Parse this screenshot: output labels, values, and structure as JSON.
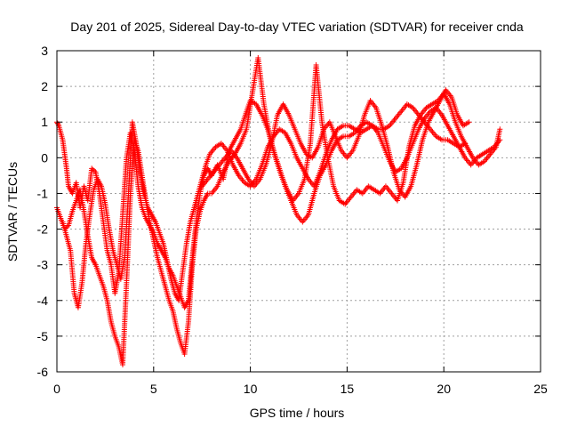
{
  "chart_data": {
    "type": "scatter",
    "title": "Day 201 of 2025, Sidereal Day-to-day VTEC variation (SDTVAR) for receiver cnda",
    "xlabel": "GPS time / hours",
    "ylabel": "SDTVAR / TECUs",
    "xlim": [
      0,
      25
    ],
    "ylim": [
      -6,
      3
    ],
    "xticks": [
      0,
      5,
      10,
      15,
      20,
      25
    ],
    "yticks": [
      -6,
      -5,
      -4,
      -3,
      -2,
      -1,
      0,
      1,
      2,
      3
    ],
    "xtick_labels": [
      "0",
      "5",
      "10",
      "15",
      "20",
      "25"
    ],
    "ytick_labels": [
      "-6",
      "-5",
      "-4",
      "-3",
      "-2",
      "-1",
      "0",
      "1",
      "2",
      "3"
    ],
    "grid": true,
    "marker": "plus",
    "color": "#ff0000",
    "series": [
      {
        "x": [
          0.0,
          0.1,
          0.2,
          0.3,
          0.4,
          0.5,
          0.6,
          0.8,
          1.0,
          1.2,
          1.4,
          1.6,
          1.8,
          2.0,
          2.2,
          2.4,
          2.6,
          2.8,
          3.0,
          3.2,
          3.4,
          3.6,
          3.8,
          4.0,
          4.2,
          4.4,
          4.6,
          4.8,
          5.0,
          5.2,
          5.4,
          5.6,
          5.8,
          6.0,
          6.2,
          6.4,
          6.6,
          6.8,
          7.0,
          7.2,
          7.4,
          7.6,
          7.8,
          8.0,
          8.3,
          8.6,
          8.9,
          9.2,
          9.5,
          9.8,
          10.0,
          10.3,
          10.6,
          10.9,
          11.2,
          11.5,
          11.8,
          12.1,
          12.4,
          12.7,
          13.0,
          13.3,
          13.6,
          13.9,
          14.2,
          14.5,
          14.8,
          15.1,
          15.4,
          15.7,
          16.0,
          16.3,
          16.6,
          16.9,
          17.2,
          17.5,
          17.8,
          18.1,
          18.4,
          18.7,
          19.0,
          19.3,
          19.6,
          19.9,
          20.2,
          20.5,
          20.8,
          21.1,
          21.4,
          21.7,
          22.0,
          22.3,
          22.6,
          22.9
        ],
        "y": [
          1.0,
          0.9,
          0.7,
          0.5,
          0.1,
          -0.3,
          -0.8,
          -1.0,
          -0.7,
          -1.4,
          -0.8,
          -1.2,
          -0.3,
          -0.4,
          -1.0,
          -1.8,
          -2.6,
          -3.0,
          -3.8,
          -3.2,
          -1.6,
          0.0,
          0.7,
          0.2,
          -0.8,
          -1.4,
          -1.7,
          -1.9,
          -2.1,
          -2.4,
          -2.6,
          -2.8,
          -3.1,
          -3.3,
          -3.6,
          -3.9,
          -4.2,
          -4.0,
          -2.8,
          -1.8,
          -1.0,
          -0.5,
          -0.3,
          -0.5,
          -0.2,
          -0.6,
          0.2,
          0.5,
          0.8,
          1.3,
          1.6,
          1.5,
          1.2,
          0.8,
          0.2,
          -0.3,
          -0.8,
          -1.2,
          -1.6,
          -1.8,
          -1.6,
          -1.0,
          -0.5,
          -0.2,
          0.2,
          0.5,
          0.6,
          0.6,
          0.7,
          0.9,
          1.0,
          0.9,
          0.8,
          0.8,
          0.9,
          1.1,
          1.3,
          1.5,
          1.4,
          1.2,
          1.0,
          0.8,
          0.6,
          0.5,
          0.5,
          0.4,
          0.3,
          0.0,
          -0.2,
          0.0,
          0.1,
          0.2,
          0.3,
          0.5
        ]
      },
      {
        "x": [
          0.0,
          0.2,
          0.4,
          0.6,
          0.8,
          1.0,
          1.2,
          1.4,
          1.6,
          1.8,
          2.0,
          2.2,
          2.4,
          2.6,
          2.8,
          3.0,
          3.2,
          3.4,
          3.6,
          3.8,
          4.0,
          4.2,
          4.4,
          4.6,
          4.8,
          5.0,
          5.2,
          5.4,
          5.6,
          5.8,
          6.0,
          6.2,
          6.4,
          6.6,
          6.8,
          7.0,
          7.2,
          7.4,
          7.6,
          7.8,
          8.0,
          8.3,
          8.6,
          8.9,
          9.2,
          9.5,
          9.8,
          10.1,
          10.4,
          10.7,
          11.0,
          11.3,
          11.6,
          11.9,
          12.2,
          12.5,
          12.8,
          13.1,
          13.4,
          13.7,
          14.0,
          14.3,
          14.6,
          14.9,
          15.2,
          15.5,
          15.8,
          16.1,
          16.4,
          16.7,
          17.0,
          17.3,
          17.6,
          17.9,
          18.2,
          18.5,
          18.8,
          19.1,
          19.4,
          19.7,
          20.0,
          20.3,
          20.6,
          20.9,
          21.2,
          21.5,
          21.8,
          22.1,
          22.4,
          22.7,
          22.9
        ],
        "y": [
          -1.4,
          -1.7,
          -2.0,
          -1.9,
          -1.5,
          -1.2,
          -0.9,
          -1.5,
          -2.2,
          -2.8,
          -3.0,
          -3.3,
          -3.6,
          -4.0,
          -4.6,
          -5.0,
          -5.3,
          -5.8,
          -3.5,
          -1.0,
          0.5,
          0.2,
          -0.5,
          -1.2,
          -1.8,
          -2.3,
          -2.8,
          -3.2,
          -3.6,
          -4.0,
          -4.3,
          -4.8,
          -5.2,
          -5.5,
          -4.6,
          -3.0,
          -2.0,
          -1.5,
          -1.2,
          -1.0,
          -1.0,
          -0.8,
          -0.4,
          -0.1,
          0.1,
          0.4,
          0.8,
          1.8,
          2.8,
          1.5,
          0.6,
          0.0,
          -0.5,
          -0.9,
          -1.2,
          -1.0,
          -0.6,
          0.4,
          2.6,
          1.0,
          0.0,
          -0.8,
          -1.2,
          -1.3,
          -1.1,
          -0.9,
          -1.0,
          -0.8,
          -0.9,
          -1.0,
          -0.8,
          -1.0,
          -1.2,
          -0.7,
          0.3,
          0.9,
          1.2,
          1.4,
          1.5,
          1.6,
          1.8,
          1.5,
          1.0,
          0.6,
          0.3,
          0.0,
          -0.2,
          -0.1,
          0.1,
          0.3,
          0.8
        ]
      },
      {
        "x": [
          0.3,
          0.5,
          0.7,
          0.9,
          1.1,
          1.3,
          1.5,
          1.7,
          1.9,
          2.1,
          2.3,
          2.5,
          2.7,
          2.9,
          3.1,
          3.3,
          3.5,
          3.7,
          3.9,
          4.1,
          4.3,
          4.5,
          4.7,
          4.9,
          5.1,
          5.3,
          5.5,
          5.7,
          5.9,
          6.1,
          6.3,
          6.5,
          6.7,
          6.9,
          7.1,
          7.3,
          7.5,
          7.7,
          7.9,
          8.2,
          8.5,
          8.8,
          9.1,
          9.4,
          9.7,
          10.0,
          10.3,
          10.6,
          10.9,
          11.2,
          11.5,
          11.8,
          12.1,
          12.4,
          12.7,
          13.0,
          13.3,
          13.6,
          13.9,
          14.2,
          14.5,
          14.8,
          15.1,
          15.4,
          15.7,
          16.0,
          16.3,
          16.6,
          16.9,
          17.2,
          17.5,
          17.8,
          18.1,
          18.4,
          18.7,
          19.0,
          19.3,
          19.6,
          19.9,
          20.2,
          20.5,
          20.8,
          21.1
        ],
        "y": [
          -1.8,
          -2.2,
          -2.6,
          -3.8,
          -4.2,
          -3.5,
          -2.4,
          -1.6,
          -0.9,
          -0.6,
          -0.8,
          -1.3,
          -2.0,
          -2.6,
          -3.0,
          -3.4,
          -2.8,
          -1.0,
          1.0,
          0.4,
          -0.4,
          -1.0,
          -1.4,
          -1.6,
          -1.8,
          -2.1,
          -2.4,
          -2.9,
          -3.4,
          -3.8,
          -4.0,
          -3.2,
          -2.4,
          -1.8,
          -1.4,
          -1.0,
          -0.6,
          -0.2,
          0.1,
          0.3,
          0.4,
          0.2,
          -0.2,
          -0.5,
          -0.7,
          -0.8,
          -0.6,
          -0.2,
          0.3,
          0.6,
          0.8,
          0.7,
          0.4,
          0.0,
          -0.3,
          -0.6,
          -0.8,
          -0.4,
          0.1,
          0.5,
          0.8,
          0.9,
          0.9,
          0.8,
          0.7,
          0.8,
          0.9,
          0.7,
          0.3,
          -0.1,
          -0.4,
          -0.3,
          0.0,
          0.4,
          0.8,
          1.1,
          1.3,
          1.4,
          1.2,
          0.9,
          0.6,
          0.3,
          0.4
        ]
      },
      {
        "x": [
          7.5,
          7.8,
          8.1,
          8.4,
          8.7,
          9.0,
          9.3,
          9.6,
          9.9,
          10.2,
          10.5,
          10.8,
          11.1,
          11.4,
          11.7,
          12.0,
          12.3,
          12.6,
          12.9,
          13.2,
          13.5,
          13.8,
          14.1,
          14.4,
          14.7,
          15.0,
          15.3,
          15.6,
          15.9,
          16.2,
          16.5,
          16.8,
          17.1,
          17.4,
          17.7,
          18.0,
          18.3,
          18.6,
          18.9,
          19.2,
          19.5,
          19.8,
          20.1,
          20.4,
          20.7,
          21.0,
          21.3
        ],
        "y": [
          -0.8,
          -0.6,
          -0.4,
          -0.2,
          0.0,
          0.2,
          0.0,
          -0.3,
          -0.6,
          -0.8,
          -0.6,
          -0.2,
          0.4,
          1.2,
          1.5,
          1.2,
          0.8,
          0.4,
          0.1,
          0.0,
          0.3,
          0.8,
          1.0,
          0.6,
          0.2,
          0.0,
          0.2,
          0.6,
          1.2,
          1.6,
          1.4,
          0.9,
          0.3,
          -0.4,
          -0.9,
          -1.1,
          -0.8,
          -0.2,
          0.5,
          1.0,
          1.3,
          1.6,
          1.9,
          1.7,
          1.2,
          0.9,
          1.0
        ]
      }
    ]
  }
}
